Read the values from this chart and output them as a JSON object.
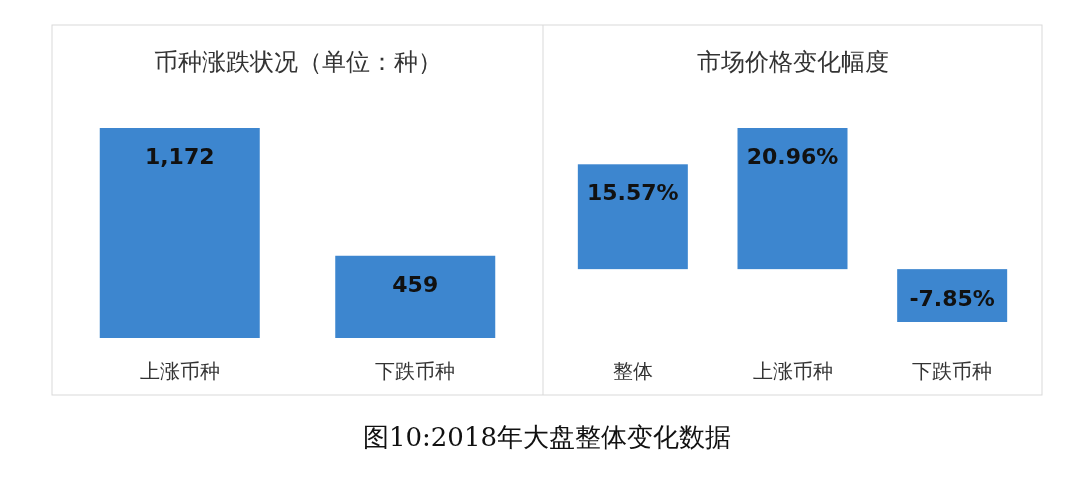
{
  "chart_data": [
    {
      "type": "bar",
      "title": "币种涨跌状况（单位：种）",
      "categories": [
        "上涨币种",
        "下跌币种"
      ],
      "values": [
        1172,
        459
      ],
      "value_labels": [
        "1,172",
        "459"
      ],
      "color": "#3d86cf",
      "annotations": [
        "图10:2018年大盘整体变化数据"
      ]
    },
    {
      "type": "bar",
      "title": "市场价格变化幅度",
      "categories": [
        "整体",
        "上涨币种",
        "下跌币种"
      ],
      "values": [
        15.57,
        20.96,
        -7.85
      ],
      "value_labels": [
        "15.57%",
        "20.96%",
        "-7.85%"
      ],
      "color": "#3d86cf"
    }
  ]
}
